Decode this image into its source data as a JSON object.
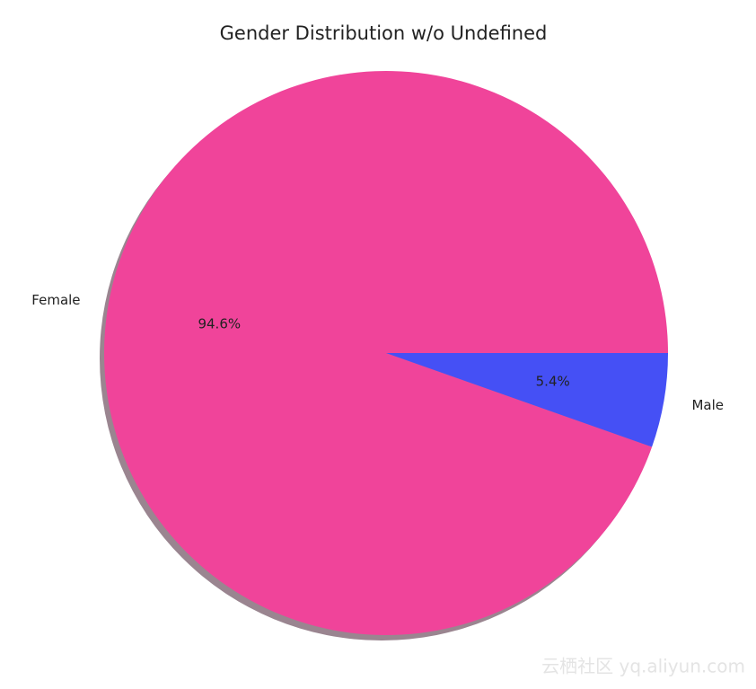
{
  "chart_data": {
    "type": "pie",
    "title": "Gender Distribution w/o Undefined",
    "categories": [
      "Female",
      "Male"
    ],
    "values": [
      94.6,
      5.4
    ],
    "value_labels": [
      "94.6%",
      "5.4%"
    ],
    "colors": [
      "#f0449a",
      "#4550f5"
    ],
    "shadow": true
  },
  "watermark": "云栖社区 yq.aliyun.com"
}
